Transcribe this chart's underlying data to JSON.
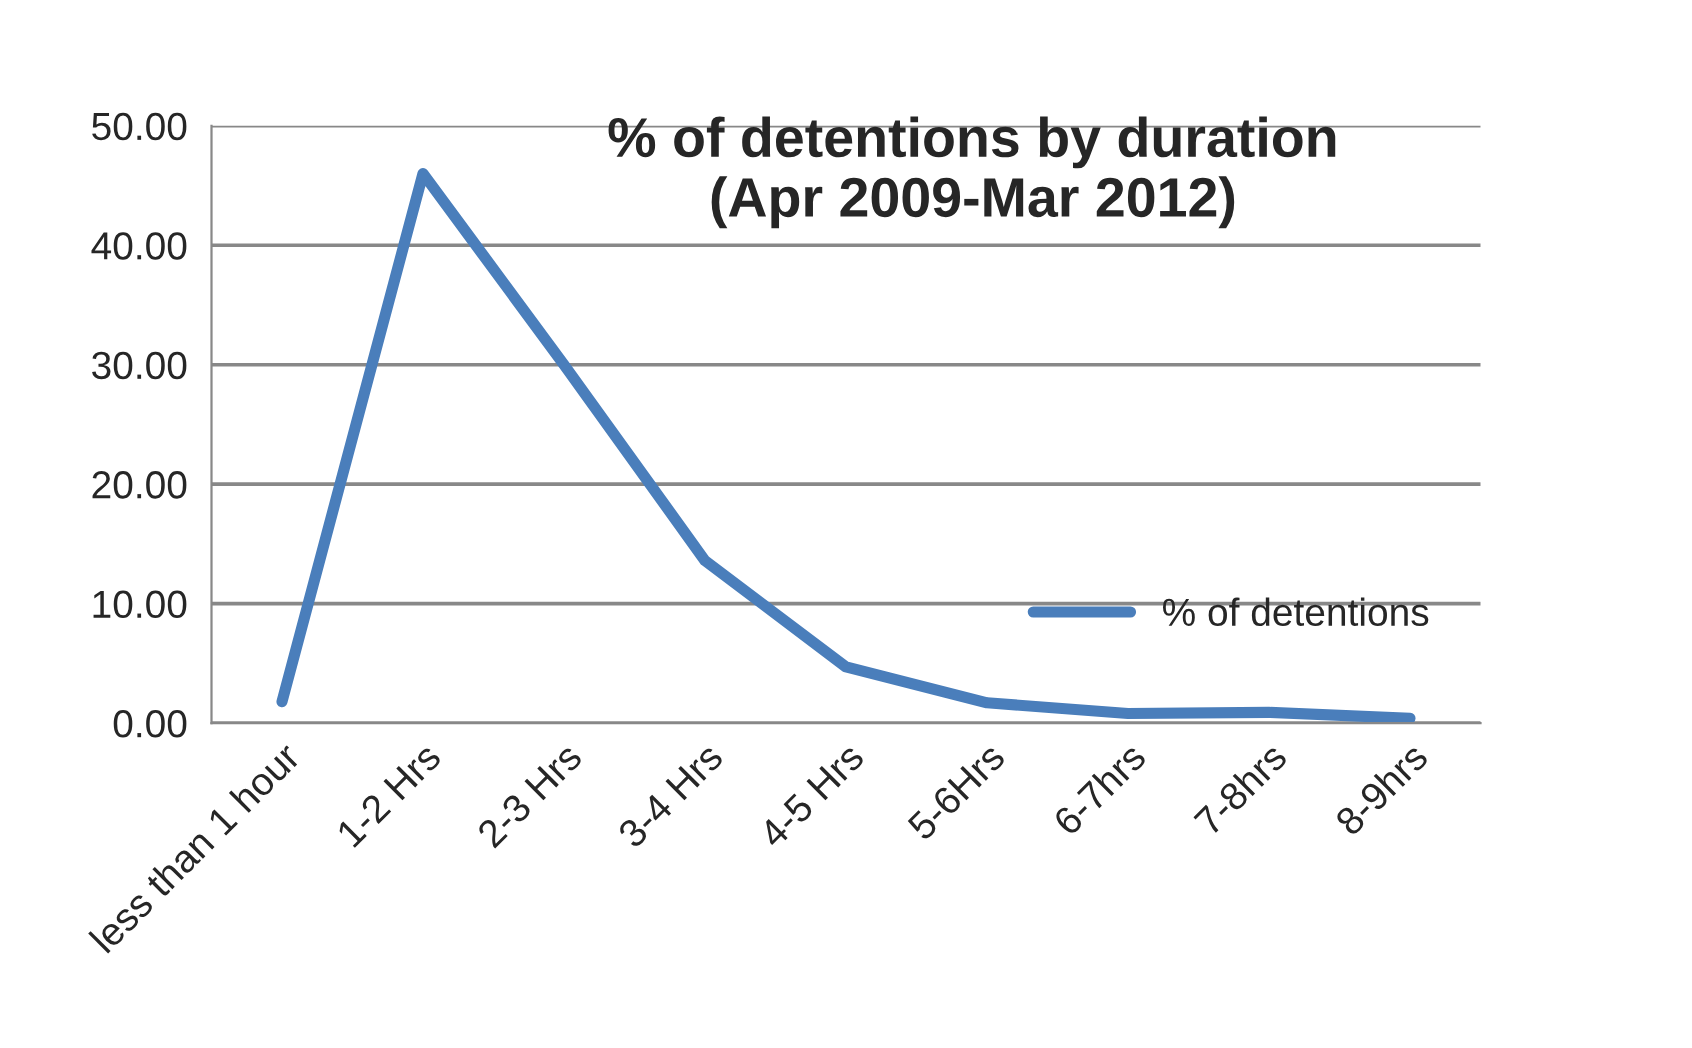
{
  "chart_data": {
    "type": "line",
    "title": "% of detentions by duration\n(Apr 2009-Mar 2012)",
    "categories": [
      "less than 1 hour",
      "1-2 Hrs",
      "2-3 Hrs",
      "3-4 Hrs",
      "4-5 Hrs",
      "5-6Hrs",
      "6-7hrs",
      "7-8hrs",
      "8-9hrs"
    ],
    "series": [
      {
        "name": "% of detentions",
        "color": "#4a7ebb",
        "values": [
          1.8,
          46.0,
          30.0,
          13.6,
          4.7,
          1.7,
          0.8,
          0.9,
          0.4
        ]
      }
    ],
    "ylim": [
      0,
      50
    ],
    "yticks": [
      {
        "value": 0,
        "label": "0.00"
      },
      {
        "value": 10,
        "label": "10.00"
      },
      {
        "value": 20,
        "label": "20.00"
      },
      {
        "value": 30,
        "label": "30.00"
      },
      {
        "value": 40,
        "label": "40.00"
      },
      {
        "value": 50,
        "label": "50.00"
      }
    ],
    "grid": "y",
    "legend": "right",
    "marker": "none",
    "line_style": "solid"
  }
}
